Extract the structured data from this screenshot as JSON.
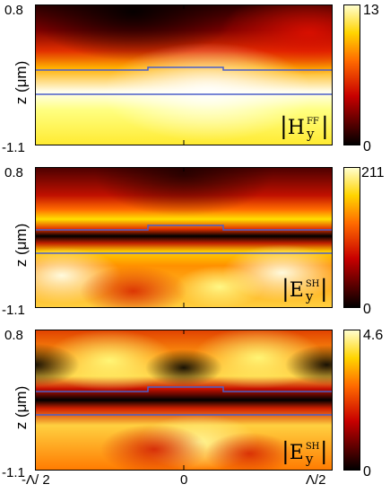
{
  "figure": {
    "x_tick_labels": [
      "-Λ/ 2",
      "0",
      "Λ/2"
    ],
    "y_axis_label": "z (μm)",
    "y_tick_top": "0.8",
    "y_tick_bottom": "-1.1"
  },
  "panels": [
    {
      "field_symbol": "H",
      "field_sub": "y",
      "field_sup": "FF",
      "cbar_max": "13",
      "cbar_min": "0"
    },
    {
      "field_symbol": "E",
      "field_sub": "y",
      "field_sup": "SH",
      "cbar_max": "211",
      "cbar_min": "0"
    },
    {
      "field_symbol": "E",
      "field_sub": "y",
      "field_sup": "SH",
      "cbar_max": "4.6",
      "cbar_min": "0"
    }
  ],
  "chart_data": [
    {
      "type": "heatmap",
      "xlabel": "",
      "ylabel": "z (μm)",
      "ylim": [
        -1.1,
        0.8
      ],
      "colorbar_range": [
        0,
        13
      ],
      "colormap": "hot",
      "legend": "|H_y^FF|",
      "structure_lines_color": "#4b5fc9"
    },
    {
      "type": "heatmap",
      "xlabel": "",
      "ylabel": "z (μm)",
      "ylim": [
        -1.1,
        0.8
      ],
      "colorbar_range": [
        0,
        211
      ],
      "colormap": "hot",
      "legend": "|E_y^SH|",
      "structure_lines_color": "#4b5fc9"
    },
    {
      "type": "heatmap",
      "xlabel": "",
      "ylabel": "z (μm)",
      "ylim": [
        -1.1,
        0.8
      ],
      "colorbar_range": [
        0,
        4.6
      ],
      "colormap": "hot",
      "legend": "|E_y^SH|",
      "structure_lines_color": "#4b5fc9"
    }
  ]
}
